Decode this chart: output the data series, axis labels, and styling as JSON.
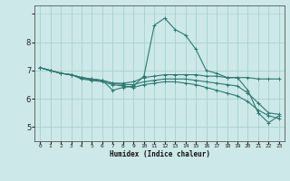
{
  "xlabel": "Humidex (Indice chaleur)",
  "xlim": [
    -0.5,
    23.5
  ],
  "ylim": [
    4.5,
    9.3
  ],
  "xticks": [
    0,
    1,
    2,
    3,
    4,
    5,
    6,
    7,
    8,
    9,
    10,
    11,
    12,
    13,
    14,
    15,
    16,
    17,
    18,
    19,
    20,
    21,
    22,
    23
  ],
  "yticks": [
    5,
    6,
    7,
    8
  ],
  "line_color": "#2d7a72",
  "bg_color": "#cce8e8",
  "grid_color": "#aacfcf",
  "series": [
    {
      "x": [
        0,
        1,
        2,
        3,
        4,
        5,
        6,
        7,
        8,
        9,
        10,
        11,
        12,
        13,
        14,
        15,
        16,
        17,
        18,
        19,
        20,
        21,
        22,
        23
      ],
      "y": [
        7.1,
        7.0,
        6.9,
        6.85,
        6.7,
        6.65,
        6.65,
        6.3,
        6.4,
        6.45,
        6.8,
        8.6,
        8.85,
        8.45,
        8.25,
        7.75,
        7.0,
        6.9,
        6.75,
        6.75,
        6.3,
        5.5,
        5.15,
        5.4
      ]
    },
    {
      "x": [
        0,
        1,
        2,
        3,
        4,
        5,
        6,
        7,
        8,
        9,
        10,
        11,
        12,
        13,
        14,
        15,
        16,
        17,
        18,
        19,
        20,
        21,
        22,
        23
      ],
      "y": [
        7.1,
        7.0,
        6.9,
        6.85,
        6.75,
        6.7,
        6.65,
        6.55,
        6.55,
        6.6,
        6.75,
        6.8,
        6.85,
        6.85,
        6.85,
        6.85,
        6.8,
        6.8,
        6.75,
        6.75,
        6.75,
        6.7,
        6.7,
        6.7
      ]
    },
    {
      "x": [
        0,
        1,
        2,
        3,
        4,
        5,
        6,
        7,
        8,
        9,
        10,
        11,
        12,
        13,
        14,
        15,
        16,
        17,
        18,
        19,
        20,
        21,
        22,
        23
      ],
      "y": [
        7.1,
        7.0,
        6.9,
        6.85,
        6.75,
        6.7,
        6.65,
        6.55,
        6.5,
        6.5,
        6.6,
        6.65,
        6.7,
        6.7,
        6.7,
        6.65,
        6.6,
        6.55,
        6.5,
        6.45,
        6.2,
        5.85,
        5.5,
        5.45
      ]
    },
    {
      "x": [
        0,
        1,
        2,
        3,
        4,
        5,
        6,
        7,
        8,
        9,
        10,
        11,
        12,
        13,
        14,
        15,
        16,
        17,
        18,
        19,
        20,
        21,
        22,
        23
      ],
      "y": [
        7.1,
        7.0,
        6.9,
        6.85,
        6.75,
        6.65,
        6.6,
        6.5,
        6.45,
        6.4,
        6.5,
        6.55,
        6.6,
        6.6,
        6.55,
        6.5,
        6.4,
        6.3,
        6.2,
        6.1,
        5.9,
        5.6,
        5.4,
        5.3
      ]
    }
  ]
}
